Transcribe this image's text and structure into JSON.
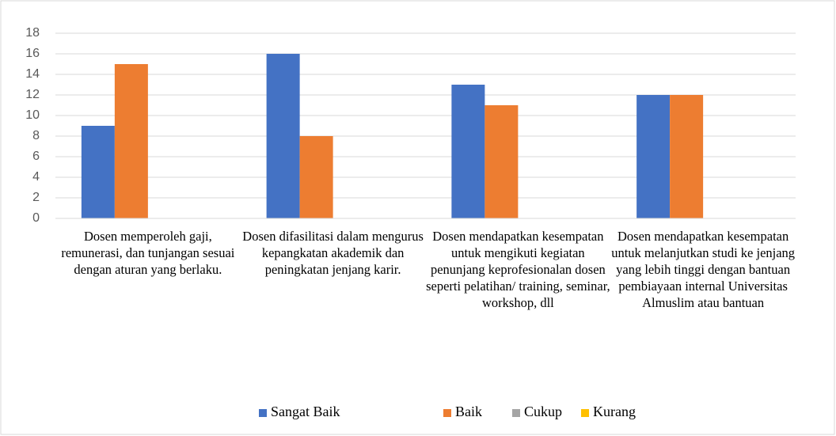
{
  "chart_data": {
    "type": "bar",
    "categories": [
      "Dosen memperoleh gaji, remunerasi, dan tunjangan sesuai dengan aturan yang berlaku.",
      "Dosen difasilitasi dalam mengurus kepangkatan akademik dan peningkatan jenjang karir.",
      "Dosen mendapatkan kesempatan untuk mengikuti kegiatan penunjang keprofesionalan dosen seperti pelatihan/ training, seminar, workshop, dll",
      "Dosen mendapatkan kesempatan untuk melanjutkan studi ke jenjang yang lebih tinggi dengan bantuan pembiayaan internal Universitas Almuslim atau bantuan"
    ],
    "series": [
      {
        "name": "Sangat Baik",
        "color": "#4472c4",
        "values": [
          9,
          16,
          13,
          12
        ]
      },
      {
        "name": "Baik",
        "color": "#ed7d31",
        "values": [
          15,
          8,
          11,
          12
        ]
      },
      {
        "name": "Cukup",
        "color": "#a5a5a5",
        "values": [
          0,
          0,
          0,
          0
        ]
      },
      {
        "name": "Kurang",
        "color": "#ffc000",
        "values": [
          0,
          0,
          0,
          0
        ]
      }
    ],
    "ylim": [
      0,
      18
    ],
    "yticks": [
      0,
      2,
      4,
      6,
      8,
      10,
      12,
      14,
      16,
      18
    ],
    "grid": true,
    "legend": "bottom"
  }
}
